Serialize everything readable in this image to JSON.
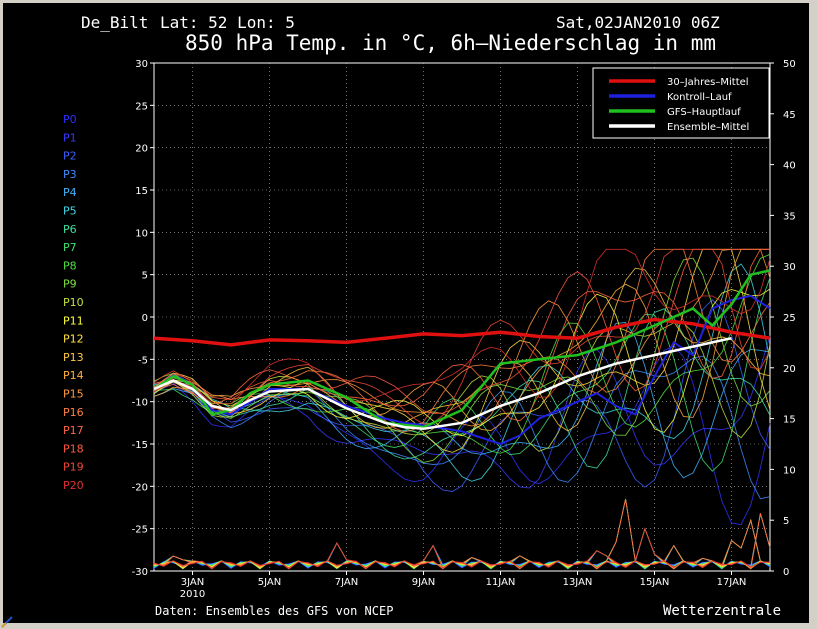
{
  "header": {
    "station": "De_Bilt",
    "latlon": "Lat: 52 Lon: 5",
    "datetime": "Sat,02JAN2010 06Z",
    "title": "850 hPa Temp. in °C, 6h–Niederschlag in mm"
  },
  "footer": {
    "source": "Daten: Ensembles des GFS von NCEP",
    "brand": "Wetterzentrale"
  },
  "members": [
    {
      "label": "P0",
      "color": "#3030ff"
    },
    {
      "label": "P1",
      "color": "#3838ff"
    },
    {
      "label": "P2",
      "color": "#3c5cff"
    },
    {
      "label": "P3",
      "color": "#3c8cff"
    },
    {
      "label": "P4",
      "color": "#40b4ff"
    },
    {
      "label": "P5",
      "color": "#40d8e8"
    },
    {
      "label": "P6",
      "color": "#40e0a0"
    },
    {
      "label": "P7",
      "color": "#40e070"
    },
    {
      "label": "P8",
      "color": "#50e040"
    },
    {
      "label": "P9",
      "color": "#80e040"
    },
    {
      "label": "P10",
      "color": "#c0e040"
    },
    {
      "label": "P11",
      "color": "#ffff40"
    },
    {
      "label": "P12",
      "color": "#ffe040"
    },
    {
      "label": "P13",
      "color": "#ffc840"
    },
    {
      "label": "P14",
      "color": "#ffb040"
    },
    {
      "label": "P15",
      "color": "#ff9840"
    },
    {
      "label": "P16",
      "color": "#ff8040"
    },
    {
      "label": "P17",
      "color": "#ff6840"
    },
    {
      "label": "P18",
      "color": "#ff5840"
    },
    {
      "label": "P19",
      "color": "#f04838"
    },
    {
      "label": "P20",
      "color": "#e03030"
    }
  ],
  "chart_data": {
    "type": "line",
    "x_start_day": 2.0,
    "x_end_day": 18.0,
    "x_ticks": [
      {
        "day": 3,
        "label": "3JAN",
        "sub": "2010"
      },
      {
        "day": 5,
        "label": "5JAN"
      },
      {
        "day": 7,
        "label": "7JAN"
      },
      {
        "day": 9,
        "label": "9JAN"
      },
      {
        "day": 11,
        "label": "11JAN"
      },
      {
        "day": 13,
        "label": "13JAN"
      },
      {
        "day": 15,
        "label": "15JAN"
      },
      {
        "day": 17,
        "label": "17JAN"
      }
    ],
    "y_left": {
      "min": -30,
      "max": 30,
      "ticks": [
        30,
        25,
        20,
        15,
        10,
        5,
        0,
        -5,
        -10,
        -15,
        -20,
        -25,
        -30
      ]
    },
    "y_right": {
      "min": 0,
      "max": 50,
      "ticks": [
        50,
        45,
        40,
        35,
        30,
        25,
        20,
        15,
        10,
        5,
        0
      ]
    },
    "grid": true,
    "legend_position": "top-right",
    "legend": [
      {
        "name": "30–Jahres–Mittel",
        "color": "#e01010"
      },
      {
        "name": "Kontroll–Lauf",
        "color": "#2020e0"
      },
      {
        "name": "GFS–Hauptlauf",
        "color": "#20c020"
      },
      {
        "name": "Ensemble–Mittel",
        "color": "#ffffff"
      }
    ],
    "climate_mean": [
      [
        2,
        -2.5
      ],
      [
        3,
        -2.8
      ],
      [
        4,
        -3.3
      ],
      [
        5,
        -2.7
      ],
      [
        6,
        -2.8
      ],
      [
        7,
        -3
      ],
      [
        8,
        -2.5
      ],
      [
        9,
        -2
      ],
      [
        10,
        -2.2
      ],
      [
        11,
        -1.8
      ],
      [
        12,
        -2.3
      ],
      [
        13,
        -2.5
      ],
      [
        14,
        -1.2
      ],
      [
        15,
        -0.3
      ],
      [
        16,
        -0.8
      ],
      [
        17,
        -1.8
      ],
      [
        18,
        -2.5
      ]
    ],
    "control_run": [
      [
        2,
        -8.5
      ],
      [
        2.5,
        -7.5
      ],
      [
        3,
        -8.5
      ],
      [
        3.5,
        -11
      ],
      [
        4,
        -11.5
      ],
      [
        4.5,
        -10
      ],
      [
        5,
        -8.5
      ],
      [
        6,
        -8.5
      ],
      [
        7,
        -10.5
      ],
      [
        8,
        -12
      ],
      [
        8.5,
        -12.5
      ],
      [
        9,
        -12.8
      ],
      [
        10,
        -13.5
      ],
      [
        11,
        -15
      ],
      [
        11.5,
        -14
      ],
      [
        12,
        -12
      ],
      [
        13,
        -10
      ],
      [
        13.5,
        -9
      ],
      [
        14,
        -10.5
      ],
      [
        14.5,
        -11.5
      ],
      [
        15,
        -7
      ],
      [
        15.5,
        -3
      ],
      [
        16,
        -4.5
      ],
      [
        16.5,
        1
      ],
      [
        17,
        2
      ],
      [
        17.5,
        2.5
      ],
      [
        18,
        1
      ]
    ],
    "gfs_main": [
      [
        2,
        -8.5
      ],
      [
        2.5,
        -7
      ],
      [
        3,
        -8
      ],
      [
        3.5,
        -11.5
      ],
      [
        4,
        -11
      ],
      [
        4.5,
        -9
      ],
      [
        5,
        -8
      ],
      [
        6,
        -7.5
      ],
      [
        7,
        -9.5
      ],
      [
        8,
        -12.5
      ],
      [
        9,
        -13
      ],
      [
        10,
        -11
      ],
      [
        11,
        -5.5
      ],
      [
        12,
        -5
      ],
      [
        13,
        -4.5
      ],
      [
        14,
        -3
      ],
      [
        15,
        -1
      ],
      [
        16,
        1
      ],
      [
        16.5,
        -1
      ],
      [
        17,
        1.5
      ],
      [
        17.5,
        5
      ],
      [
        18,
        5.5
      ]
    ],
    "ensemble_mean": [
      [
        2,
        -8.5
      ],
      [
        2.5,
        -7.5
      ],
      [
        3,
        -8.5
      ],
      [
        3.5,
        -10.5
      ],
      [
        4,
        -11
      ],
      [
        4.5,
        -9.8
      ],
      [
        5,
        -8.8
      ],
      [
        6,
        -8.5
      ],
      [
        7,
        -10.8
      ],
      [
        8,
        -12.5
      ],
      [
        8.5,
        -13
      ],
      [
        9,
        -13.2
      ],
      [
        10,
        -12.5
      ],
      [
        11,
        -10.5
      ],
      [
        12,
        -9
      ],
      [
        13,
        -7
      ],
      [
        14,
        -5.5
      ],
      [
        15,
        -4.5
      ],
      [
        16,
        -3.5
      ],
      [
        16.5,
        -3
      ],
      [
        17,
        -2.5
      ]
    ],
    "precip_peaks": [
      [
        2.6,
        2.2
      ],
      [
        3.1,
        1.5
      ],
      [
        6.8,
        3.3
      ],
      [
        9.2,
        3
      ],
      [
        10.3,
        1.6
      ],
      [
        11.5,
        1.5
      ],
      [
        12.5,
        1
      ],
      [
        13.6,
        3
      ],
      [
        14.2,
        8.5
      ],
      [
        14.8,
        5
      ],
      [
        15.5,
        2.5
      ],
      [
        16.3,
        1.5
      ],
      [
        17.1,
        4.5
      ],
      [
        17.5,
        5
      ],
      [
        17.8,
        6.8
      ]
    ]
  }
}
